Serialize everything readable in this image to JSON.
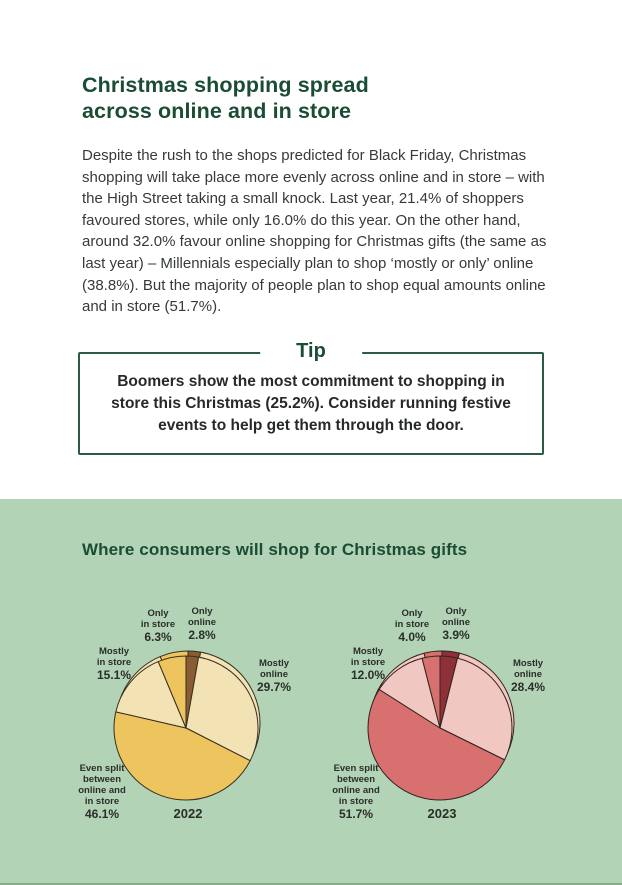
{
  "page": {
    "title": "Christmas shopping spread\nacross online and in store",
    "intro": "Despite the rush to the shops predicted for Black Friday, Christmas shopping will take place more evenly across online and in store – with the High Street taking a small knock. Last year, 21.4% of shoppers favoured stores, while only 16.0% do this year. On the other hand, around 32.0% favour online shopping for Christmas gifts (the same as last year) – Millennials especially plan to shop ‘mostly or only’ online (38.8%). But the majority of people plan to shop equal amounts online and in store (51.7%).",
    "tip": {
      "title": "Tip",
      "body": "Boomers show the most commitment to shopping in store this Christmas (25.2%). Consider running festive events to help get them through the door."
    },
    "chart_section": {
      "heading": "Where consumers will shop for Christmas gifts"
    }
  },
  "colors": {
    "heading_green": "#1b4d35",
    "body_text": "#363a3d",
    "tip_border": "#2c5b43",
    "tip_text": "#26292b",
    "section_bg": "#b2d3b5",
    "bottom_strip": "#86ad8c",
    "label_text": "#2b2e2a"
  },
  "chart_data": [
    {
      "type": "pie",
      "year_label": "2022",
      "direction": "clockwise",
      "start_angle_deg": 0,
      "legend_position": "around",
      "outline": "#35301f",
      "categories": [
        "Only online",
        "Mostly online",
        "Even split between online and in store",
        "Mostly in store",
        "Only in store"
      ],
      "values": [
        2.8,
        29.7,
        46.1,
        15.1,
        6.3
      ],
      "colors": [
        "#8a5c33",
        "#f3e2b4",
        "#eec45e",
        "#f3e2b4",
        "#eec45e"
      ],
      "labels": [
        {
          "text": "Only\nonline",
          "pct": "2.8%"
        },
        {
          "text": "Mostly\nonline",
          "pct": "29.7%"
        },
        {
          "text": "Even split\nbetween\nonline and\nin store",
          "pct": "46.1%"
        },
        {
          "text": "Mostly\nin store",
          "pct": "15.1%"
        },
        {
          "text": "Only\nin store",
          "pct": "6.3%"
        }
      ]
    },
    {
      "type": "pie",
      "year_label": "2023",
      "direction": "clockwise",
      "start_angle_deg": 0,
      "legend_position": "around",
      "outline": "#33231f",
      "categories": [
        "Only online",
        "Mostly online",
        "Even split between online and in store",
        "Mostly in store",
        "Only in store"
      ],
      "values": [
        3.9,
        28.4,
        51.7,
        12.0,
        4.0
      ],
      "colors": [
        "#8e3038",
        "#f0c7c1",
        "#d87070",
        "#f0c7c1",
        "#d87070"
      ],
      "labels": [
        {
          "text": "Only\nonline",
          "pct": "3.9%"
        },
        {
          "text": "Mostly\nonline",
          "pct": "28.4%"
        },
        {
          "text": "Even split\nbetween\nonline and\nin store",
          "pct": "51.7%"
        },
        {
          "text": "Mostly\nin store",
          "pct": "12.0%"
        },
        {
          "text": "Only\nin store",
          "pct": "4.0%"
        }
      ]
    }
  ]
}
